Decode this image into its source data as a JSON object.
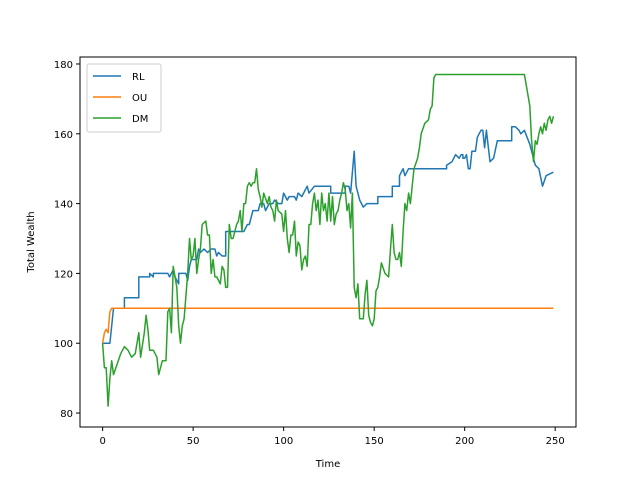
{
  "chart_data": {
    "type": "line",
    "title": "",
    "xlabel": "Time",
    "ylabel": "Total Wealth",
    "xlim": [
      -12.5,
      261.5
    ],
    "ylim": [
      76,
      182
    ],
    "xticks": [
      0,
      50,
      100,
      150,
      200,
      250
    ],
    "yticks": [
      80,
      100,
      120,
      140,
      160,
      180
    ],
    "grid": false,
    "legend_position": "top-left",
    "series": [
      {
        "name": "RL",
        "color": "#1f77b4",
        "points": [
          [
            0,
            100
          ],
          [
            4,
            100
          ],
          [
            6,
            110
          ],
          [
            8,
            110
          ],
          [
            12,
            110
          ],
          [
            12,
            113
          ],
          [
            20,
            113
          ],
          [
            20,
            116
          ],
          [
            20,
            119
          ],
          [
            26,
            119
          ],
          [
            26,
            120
          ],
          [
            28,
            119
          ],
          [
            28,
            120
          ],
          [
            36,
            120
          ],
          [
            37,
            119
          ],
          [
            39,
            121
          ],
          [
            40,
            119
          ],
          [
            42,
            117
          ],
          [
            42,
            120
          ],
          [
            46,
            120
          ],
          [
            47,
            118
          ],
          [
            48,
            122
          ],
          [
            49,
            124
          ],
          [
            52,
            124
          ],
          [
            53,
            127
          ],
          [
            54,
            126
          ],
          [
            56,
            127
          ],
          [
            58,
            126
          ],
          [
            60,
            127
          ],
          [
            62,
            127
          ],
          [
            63,
            125
          ],
          [
            64,
            126
          ],
          [
            66,
            125
          ],
          [
            68,
            125
          ],
          [
            68,
            132
          ],
          [
            74,
            132
          ],
          [
            78,
            132
          ],
          [
            80,
            134
          ],
          [
            81,
            134
          ],
          [
            82,
            136
          ],
          [
            83,
            138
          ],
          [
            86,
            138
          ],
          [
            87,
            140
          ],
          [
            89,
            140
          ],
          [
            90,
            138
          ],
          [
            92,
            140
          ],
          [
            94,
            140
          ],
          [
            95,
            141
          ],
          [
            97,
            140
          ],
          [
            99,
            140
          ],
          [
            100,
            143
          ],
          [
            102,
            141
          ],
          [
            103,
            142
          ],
          [
            106,
            142
          ],
          [
            107,
            141
          ],
          [
            108,
            143
          ],
          [
            110,
            142
          ],
          [
            113,
            145
          ],
          [
            114,
            143
          ],
          [
            117,
            145
          ],
          [
            122,
            145
          ],
          [
            126,
            145
          ],
          [
            126,
            143
          ],
          [
            134,
            143
          ],
          [
            134,
            145
          ],
          [
            136,
            145
          ],
          [
            137,
            143
          ],
          [
            139,
            155
          ],
          [
            140,
            145
          ],
          [
            142,
            141
          ],
          [
            144,
            139
          ],
          [
            146,
            140
          ],
          [
            152,
            140
          ],
          [
            152,
            142
          ],
          [
            160,
            142
          ],
          [
            160,
            145
          ],
          [
            164,
            145
          ],
          [
            164,
            148
          ],
          [
            166,
            150
          ],
          [
            167,
            148
          ],
          [
            169,
            150
          ],
          [
            190,
            150
          ],
          [
            190,
            151
          ],
          [
            193,
            152
          ],
          [
            195,
            154
          ],
          [
            197,
            153
          ],
          [
            198,
            154
          ],
          [
            199,
            154
          ],
          [
            199,
            153
          ],
          [
            200,
            153
          ],
          [
            201,
            154
          ],
          [
            202,
            150
          ],
          [
            203,
            150
          ],
          [
            204,
            155
          ],
          [
            206,
            155
          ],
          [
            207,
            159
          ],
          [
            209,
            161
          ],
          [
            210,
            161
          ],
          [
            211,
            156
          ],
          [
            212,
            161
          ],
          [
            214,
            152
          ],
          [
            216,
            153
          ],
          [
            218,
            158
          ],
          [
            226,
            158
          ],
          [
            226,
            162
          ],
          [
            228,
            162
          ],
          [
            230,
            161
          ],
          [
            231,
            160
          ],
          [
            233,
            161
          ],
          [
            236,
            157
          ],
          [
            239,
            151
          ],
          [
            241,
            150
          ],
          [
            243,
            145
          ],
          [
            245,
            148
          ],
          [
            249,
            149
          ]
        ]
      },
      {
        "name": "OU",
        "color": "#ff7f0e",
        "points": [
          [
            0,
            100
          ],
          [
            1,
            103
          ],
          [
            2,
            104
          ],
          [
            3,
            103
          ],
          [
            4,
            109
          ],
          [
            5,
            110
          ],
          [
            6,
            110
          ],
          [
            10,
            110
          ],
          [
            249,
            110
          ]
        ]
      },
      {
        "name": "DM",
        "color": "#2ca02c",
        "points": [
          [
            0,
            100
          ],
          [
            1,
            93
          ],
          [
            2,
            93
          ],
          [
            3,
            82
          ],
          [
            4,
            90
          ],
          [
            5,
            95
          ],
          [
            6,
            91
          ],
          [
            8,
            94
          ],
          [
            10,
            97
          ],
          [
            12,
            99
          ],
          [
            14,
            98
          ],
          [
            16,
            96
          ],
          [
            18,
            97
          ],
          [
            20,
            103
          ],
          [
            21,
            96
          ],
          [
            23,
            103
          ],
          [
            24,
            108
          ],
          [
            25,
            104
          ],
          [
            26,
            98
          ],
          [
            28,
            98
          ],
          [
            30,
            96
          ],
          [
            31,
            91
          ],
          [
            33,
            95
          ],
          [
            35,
            95
          ],
          [
            36,
            109
          ],
          [
            37,
            110
          ],
          [
            38,
            103
          ],
          [
            39,
            122
          ],
          [
            40,
            119
          ],
          [
            41,
            116
          ],
          [
            42,
            105
          ],
          [
            43,
            100
          ],
          [
            44,
            105
          ],
          [
            45,
            107
          ],
          [
            47,
            120
          ],
          [
            48,
            130
          ],
          [
            49,
            124
          ],
          [
            50,
            125
          ],
          [
            51,
            130
          ],
          [
            52,
            120
          ],
          [
            53,
            124
          ],
          [
            54,
            127
          ],
          [
            55,
            134
          ],
          [
            57,
            135
          ],
          [
            58,
            131
          ],
          [
            59,
            131
          ],
          [
            60,
            120
          ],
          [
            61,
            124
          ],
          [
            62,
            119
          ],
          [
            63,
            119
          ],
          [
            64,
            118
          ],
          [
            65,
            117
          ],
          [
            66,
            122
          ],
          [
            67,
            121
          ],
          [
            68,
            116
          ],
          [
            69,
            116
          ],
          [
            70,
            134
          ],
          [
            71,
            130
          ],
          [
            72,
            130
          ],
          [
            74,
            134
          ],
          [
            75,
            135
          ],
          [
            76,
            138
          ],
          [
            77,
            132
          ],
          [
            78,
            140
          ],
          [
            79,
            140
          ],
          [
            80,
            145
          ],
          [
            81,
            146
          ],
          [
            82,
            145
          ],
          [
            83,
            146
          ],
          [
            84,
            146
          ],
          [
            85,
            150
          ],
          [
            86,
            144
          ],
          [
            87,
            142
          ],
          [
            88,
            139
          ],
          [
            89,
            143
          ],
          [
            91,
            140
          ],
          [
            92,
            142
          ],
          [
            93,
            139
          ],
          [
            94,
            138
          ],
          [
            95,
            135
          ],
          [
            96,
            141
          ],
          [
            97,
            138
          ],
          [
            99,
            137
          ],
          [
            100,
            132
          ],
          [
            101,
            138
          ],
          [
            102,
            130
          ],
          [
            103,
            126
          ],
          [
            104,
            131
          ],
          [
            105,
            131
          ],
          [
            106,
            135
          ],
          [
            107,
            125
          ],
          [
            108,
            129
          ],
          [
            109,
            128
          ],
          [
            110,
            121
          ],
          [
            111,
            124
          ],
          [
            112,
            125
          ],
          [
            113,
            122
          ],
          [
            114,
            134
          ],
          [
            115,
            134
          ],
          [
            116,
            140
          ],
          [
            117,
            143
          ],
          [
            118,
            138
          ],
          [
            119,
            141
          ],
          [
            120,
            134
          ],
          [
            121,
            143
          ],
          [
            122,
            138
          ],
          [
            123,
            140
          ],
          [
            124,
            135
          ],
          [
            125,
            143
          ],
          [
            126,
            135
          ],
          [
            127,
            142
          ],
          [
            128,
            134
          ],
          [
            129,
            137
          ],
          [
            130,
            138
          ],
          [
            131,
            141
          ],
          [
            132,
            143
          ],
          [
            133,
            146
          ],
          [
            134,
            144
          ],
          [
            135,
            138
          ],
          [
            136,
            140
          ],
          [
            137,
            133
          ],
          [
            138,
            143
          ],
          [
            139,
            116
          ],
          [
            140,
            113
          ],
          [
            141,
            117
          ],
          [
            142,
            107
          ],
          [
            144,
            107
          ],
          [
            145,
            114
          ],
          [
            146,
            118
          ],
          [
            147,
            108
          ],
          [
            148,
            106
          ],
          [
            149,
            105
          ],
          [
            150,
            107
          ],
          [
            151,
            115
          ],
          [
            152,
            116
          ],
          [
            153,
            119
          ],
          [
            154,
            123
          ],
          [
            156,
            120
          ],
          [
            158,
            119
          ],
          [
            159,
            127
          ],
          [
            160,
            134
          ],
          [
            161,
            126
          ],
          [
            162,
            124
          ],
          [
            163,
            124
          ],
          [
            164,
            126
          ],
          [
            165,
            122
          ],
          [
            166,
            132
          ],
          [
            167,
            140
          ],
          [
            168,
            138
          ],
          [
            169,
            143
          ],
          [
            170,
            140
          ],
          [
            171,
            145
          ],
          [
            172,
            150
          ],
          [
            174,
            153
          ],
          [
            175,
            156
          ],
          [
            176,
            160
          ],
          [
            178,
            163
          ],
          [
            180,
            164
          ],
          [
            181,
            167
          ],
          [
            182,
            168
          ],
          [
            183,
            176
          ],
          [
            184,
            177
          ],
          [
            200,
            177
          ],
          [
            215,
            177
          ],
          [
            233,
            177
          ],
          [
            234,
            174
          ],
          [
            235,
            171
          ],
          [
            236,
            168
          ],
          [
            237,
            158
          ],
          [
            238,
            152
          ],
          [
            239,
            158
          ],
          [
            240,
            157
          ],
          [
            241,
            160
          ],
          [
            242,
            162
          ],
          [
            243,
            160
          ],
          [
            244,
            163
          ],
          [
            245,
            161
          ],
          [
            246,
            164
          ],
          [
            247,
            165
          ],
          [
            248,
            163
          ],
          [
            249,
            165
          ]
        ]
      }
    ]
  }
}
